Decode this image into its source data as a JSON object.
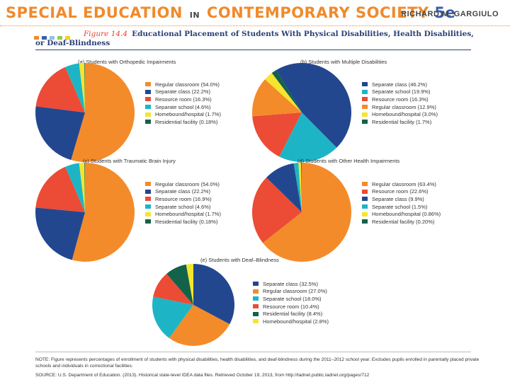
{
  "header": {
    "title_part1": "SPECIAL EDUCATION",
    "title_in": "IN",
    "title_part2": "CONTEMPORARY SOCIETY",
    "title_edition": "5e",
    "author": "RICHARD M. GARGIULO"
  },
  "colors": {
    "brand_orange": "#f08a2c",
    "brand_navy": "#2a3f75",
    "square_1": "#f08a2c",
    "square_2": "#3a5ea8",
    "square_3": "#8cc4e8",
    "square_4": "#8ccf4c",
    "square_5": "#f6d11a"
  },
  "figure": {
    "number": "Figure 14.4",
    "title": "Educational Placement of Students With Physical Disabilities, Health Disabilities, or Deaf-Blindness"
  },
  "chart_data": [
    {
      "type": "pie",
      "title": "(a) Students with Orthopedic Impairments",
      "slices": [
        {
          "label": "Regular classroom (54.0%)",
          "value": 54.0,
          "color": "#f48b2a"
        },
        {
          "label": "Separate class (22.2%)",
          "value": 22.2,
          "color": "#23478f"
        },
        {
          "label": "Resource room (16.3%)",
          "value": 16.3,
          "color": "#ec4b35"
        },
        {
          "label": "Separate school (4.6%)",
          "value": 4.6,
          "color": "#1db5c5"
        },
        {
          "label": "Homebound/hospital (1.7%)",
          "value": 1.7,
          "color": "#f5e52f"
        },
        {
          "label": "Residential facility (0.18%)",
          "value": 0.18,
          "color": "#13624a"
        }
      ]
    },
    {
      "type": "pie",
      "title": "(b) Students with Multiple Disabilities",
      "slices": [
        {
          "label": "Separate class (46.2%)",
          "value": 46.2,
          "color": "#23478f"
        },
        {
          "label": "Separate school (19.9%)",
          "value": 19.9,
          "color": "#1db5c5"
        },
        {
          "label": "Resource room (16.3%)",
          "value": 16.3,
          "color": "#ec4b35"
        },
        {
          "label": "Regular classroom (12.9%)",
          "value": 12.9,
          "color": "#f48b2a"
        },
        {
          "label": "Homebound/hospital (3.0%)",
          "value": 3.0,
          "color": "#f5e52f"
        },
        {
          "label": "Residential facility (1.7%)",
          "value": 1.7,
          "color": "#13624a"
        }
      ]
    },
    {
      "type": "pie",
      "title": "(c) Students with Traumatic Brain Injury",
      "slices": [
        {
          "label": "Regular classroom (54.0%)",
          "value": 54.0,
          "color": "#f48b2a"
        },
        {
          "label": "Separate class (22.2%)",
          "value": 22.2,
          "color": "#23478f"
        },
        {
          "label": "Resource room (16.9%)",
          "value": 16.9,
          "color": "#ec4b35"
        },
        {
          "label": "Separate school (4.6%)",
          "value": 4.6,
          "color": "#1db5c5"
        },
        {
          "label": "Homebound/hospital (1.7%)",
          "value": 1.7,
          "color": "#f5e52f"
        },
        {
          "label": "Residential facility (0.18%)",
          "value": 0.18,
          "color": "#13624a"
        }
      ]
    },
    {
      "type": "pie",
      "title": "(d) Students with Other Health Impairments",
      "slices": [
        {
          "label": "Regular classroom (63.4%)",
          "value": 63.4,
          "color": "#f48b2a"
        },
        {
          "label": "Resource room (22.6%)",
          "value": 22.6,
          "color": "#ec4b35"
        },
        {
          "label": "Separate class (9.9%)",
          "value": 9.9,
          "color": "#23478f"
        },
        {
          "label": "Separate school (1.5%)",
          "value": 1.5,
          "color": "#1db5c5"
        },
        {
          "label": "Homebound/hospital (0.86%)",
          "value": 0.86,
          "color": "#f5e52f"
        },
        {
          "label": "Residential facility (0.20%)",
          "value": 0.2,
          "color": "#13624a"
        }
      ]
    },
    {
      "type": "pie",
      "title": "(e) Students with Deaf–Blindness",
      "slices": [
        {
          "label": "Separate class (32.5%)",
          "value": 32.5,
          "color": "#23478f"
        },
        {
          "label": "Regular classroom (27.0%)",
          "value": 27.0,
          "color": "#f48b2a"
        },
        {
          "label": "Separate school (18.0%)",
          "value": 18.0,
          "color": "#1db5c5"
        },
        {
          "label": "Resource room (10.4%)",
          "value": 10.4,
          "color": "#ec4b35"
        },
        {
          "label": "Residential facility (8.4%)",
          "value": 8.4,
          "color": "#13624a"
        },
        {
          "label": "Homebound/hospital (2.8%)",
          "value": 2.8,
          "color": "#f5e52f"
        }
      ]
    }
  ],
  "footer": {
    "note": "NOTE: Figure represents percentages of enrollment of students with physical disabilities, health disabilities, and deaf-blindness during the 2011–2012 school year. Excludes pupils enrolled in parentally placed private schools and individuals in correctional facilities.",
    "source": "SOURCE: U.S. Department of Education. (2013). Historical state-level IDEA data files. Retrieved October 19, 2013, from http://tadnet.public.tadnet.org/pages/712"
  }
}
